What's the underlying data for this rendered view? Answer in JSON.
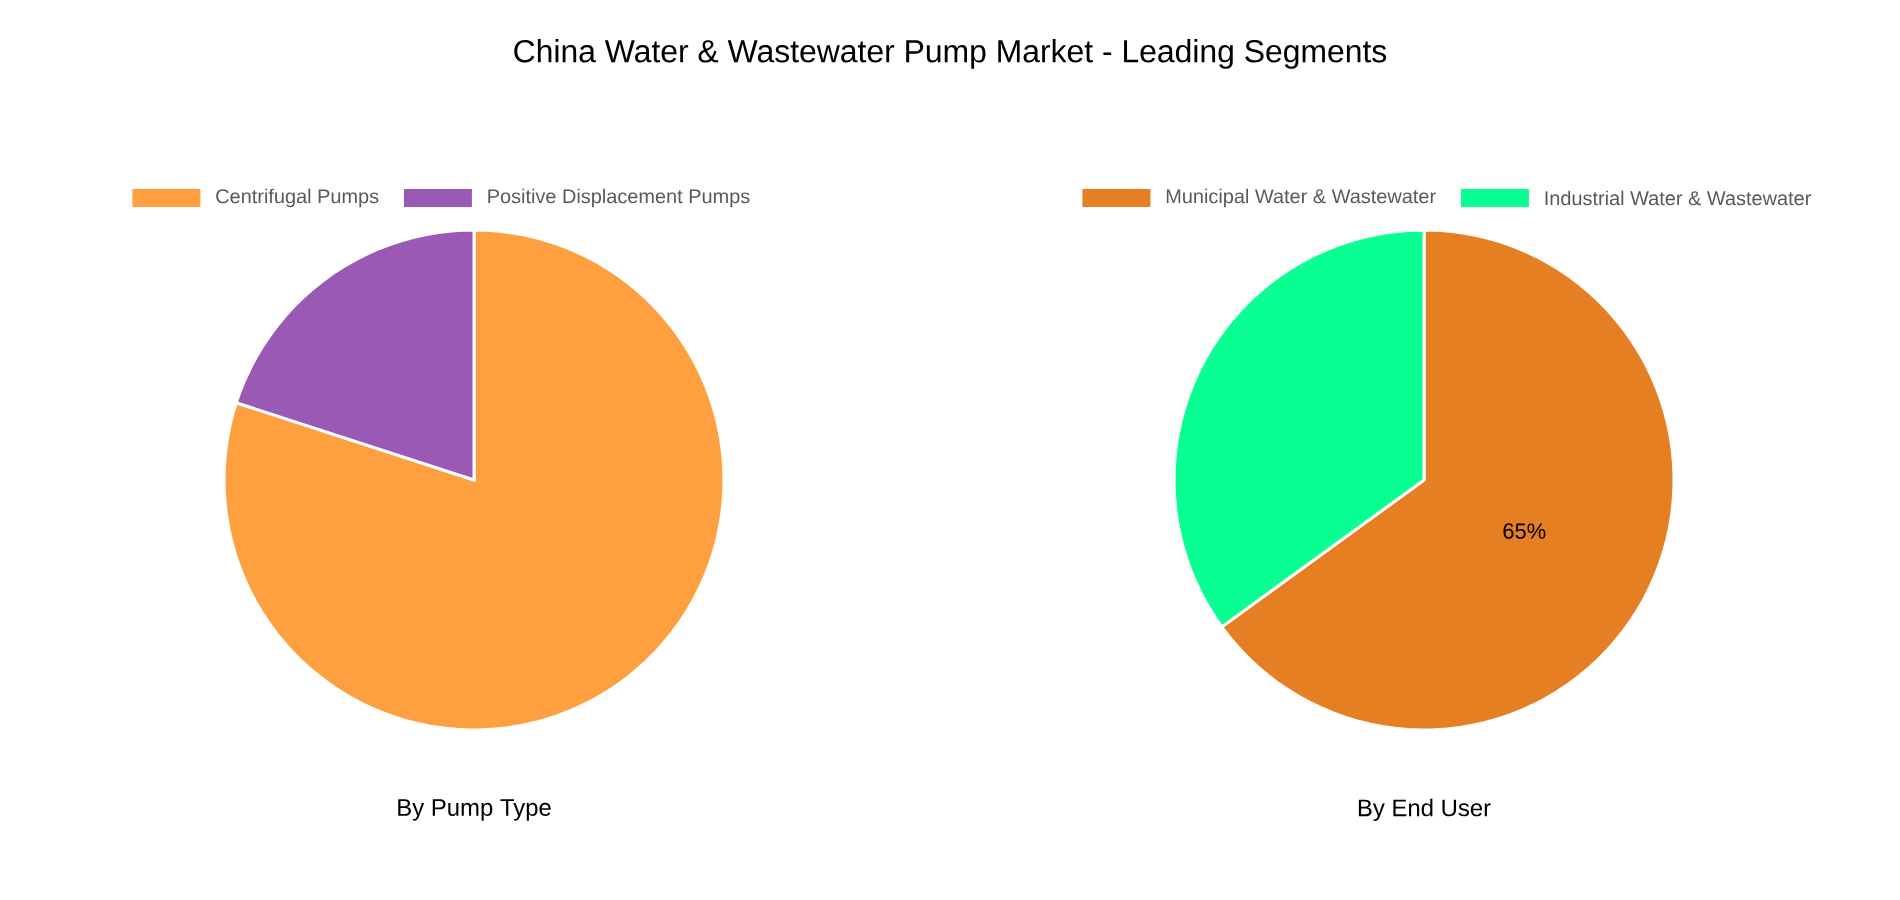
{
  "chart_data": [
    {
      "type": "pie",
      "title": "China Water & Wastewater Pump Market - Leading Segments",
      "subtitle": "By Pump Type",
      "categories": [
        "Centrifugal Pumps",
        "Positive Displacement Pumps"
      ],
      "values": [
        80,
        20
      ],
      "colors": [
        "#ffa040",
        "#9b59b6"
      ],
      "legend": "top"
    },
    {
      "type": "pie",
      "subtitle": "By End User",
      "categories": [
        "Municipal Water & Wastewater",
        "Industrial Water & Wastewater"
      ],
      "values": [
        65,
        35
      ],
      "colors": [
        "#e67e22",
        "#0aff92"
      ],
      "value_labels": [
        "65%",
        null
      ],
      "legend": "top"
    }
  ]
}
